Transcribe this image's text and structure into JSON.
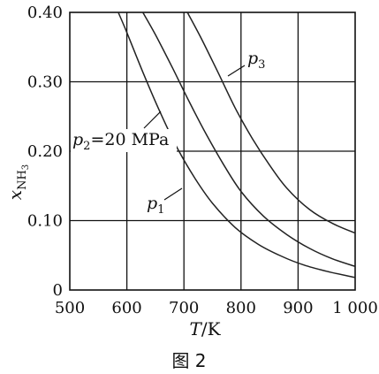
{
  "chart_data": {
    "type": "line",
    "xlim": [
      500,
      1000
    ],
    "ylim": [
      0,
      0.4
    ],
    "x_ticks": [
      500,
      600,
      700,
      800,
      900,
      1000
    ],
    "x_tick_labels": [
      "500",
      "600",
      "700",
      "800",
      "900",
      "1 000"
    ],
    "y_ticks": [
      0,
      0.1,
      0.2,
      0.3,
      0.4
    ],
    "y_tick_labels": [
      "0",
      "0.10",
      "0.20",
      "0.30",
      "0.40"
    ],
    "xlabel": {
      "italic": "T",
      "rest": "/K"
    },
    "ylabel": {
      "base": "x",
      "sub": "NH",
      "subsub": "3"
    },
    "grid": true,
    "series": [
      {
        "name": "p1",
        "label_main": "p",
        "label_sub": "1",
        "color": "#222222",
        "x": [
          585,
          600,
          630,
          660,
          690,
          720,
          750,
          790,
          830,
          870,
          910,
          950,
          1000
        ],
        "y": [
          0.4,
          0.371,
          0.31,
          0.253,
          0.202,
          0.16,
          0.125,
          0.09,
          0.066,
          0.049,
          0.036,
          0.027,
          0.018
        ]
      },
      {
        "name": "p2",
        "label_main": "p",
        "label_sub": "2",
        "label_suffix": "=20 MPa",
        "color": "#222222",
        "x": [
          628,
          650,
          680,
          710,
          740,
          770,
          800,
          840,
          880,
          920,
          960,
          1000
        ],
        "y": [
          0.4,
          0.368,
          0.32,
          0.27,
          0.223,
          0.18,
          0.142,
          0.106,
          0.08,
          0.06,
          0.045,
          0.034
        ]
      },
      {
        "name": "p3",
        "label_main": "p",
        "label_sub": "3",
        "color": "#222222",
        "x": [
          706,
          730,
          760,
          790,
          820,
          850,
          880,
          920,
          960,
          1000
        ],
        "y": [
          0.4,
          0.363,
          0.313,
          0.262,
          0.218,
          0.18,
          0.147,
          0.116,
          0.096,
          0.082
        ]
      }
    ]
  },
  "figure_caption": "图 2"
}
